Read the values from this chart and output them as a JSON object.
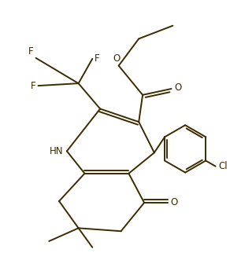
{
  "background_color": "#ffffff",
  "line_color": "#3d2b00",
  "line_width": 1.4,
  "fig_width": 2.92,
  "fig_height": 3.22,
  "dpi": 100,
  "xlim": [
    0,
    10
  ],
  "ylim": [
    0,
    11
  ]
}
